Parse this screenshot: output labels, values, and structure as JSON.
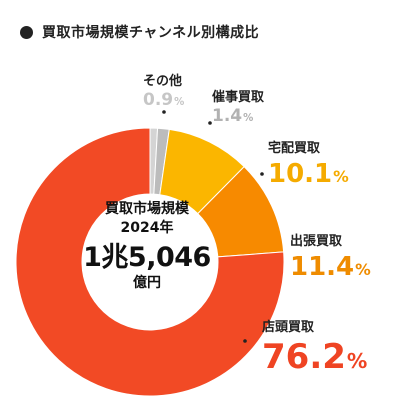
{
  "header": {
    "title": "買取市場規模チャンネル別構成比"
  },
  "center": {
    "line1": "買取市場規模",
    "line2": "2024年",
    "amount": "1兆5,046",
    "unit": "億円"
  },
  "chart_data": {
    "type": "pie",
    "title": "買取市場規模チャンネル別構成比",
    "unit": "%",
    "slices": [
      {
        "name": "その他",
        "value": 0.9,
        "display": "0.9",
        "color": "#d4d4d4",
        "label_color": "#c6c6c6"
      },
      {
        "name": "催事買取",
        "value": 1.4,
        "display": "1.4",
        "color": "#bcbcbc",
        "label_color": "#b2b2b2"
      },
      {
        "name": "宅配買取",
        "value": 10.1,
        "display": "10.1",
        "color": "#fbb600",
        "label_color": "#f5ab00"
      },
      {
        "name": "出張買取",
        "value": 11.4,
        "display": "11.4",
        "color": "#f78a00",
        "label_color": "#ef8c00"
      },
      {
        "name": "店頭買取",
        "value": 76.2,
        "display": "76.2",
        "color": "#f24a25",
        "label_color": "#ef4423"
      }
    ]
  }
}
